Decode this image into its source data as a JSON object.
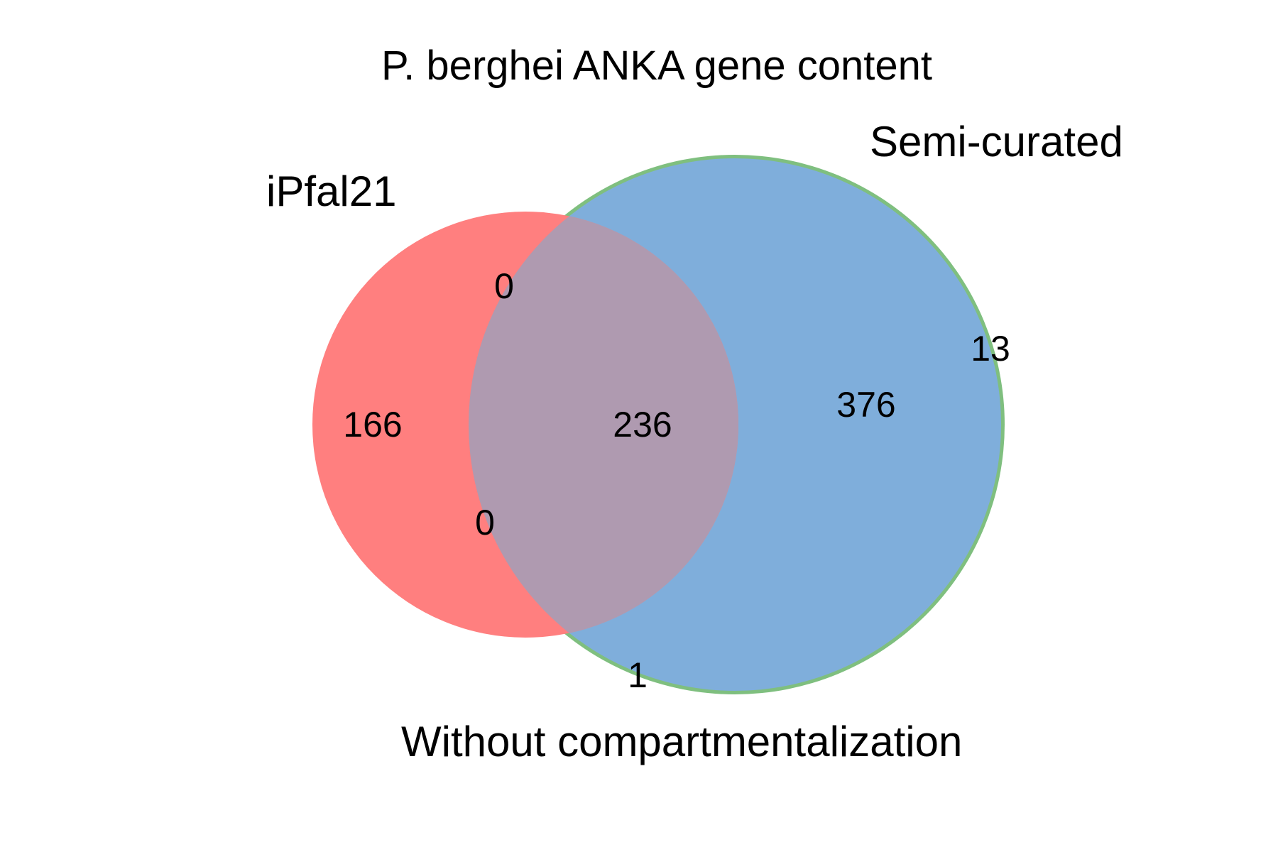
{
  "title": "P. berghei ANKA gene content",
  "sets": [
    {
      "name": "iPfal21",
      "color": "#ff7f7f"
    },
    {
      "name": "Semi-curated",
      "color": "#7fbf7f"
    },
    {
      "name": "Without compartmentalization",
      "color": "#7faedb"
    }
  ],
  "overlap_color": "#af9ab0",
  "regions": {
    "iPfal21_only": "166",
    "iPfal21_semi": "0",
    "iPfal21_without": "0",
    "all_three": "236",
    "semi_without": "376",
    "semi_only": "13",
    "without_only": "1"
  }
}
